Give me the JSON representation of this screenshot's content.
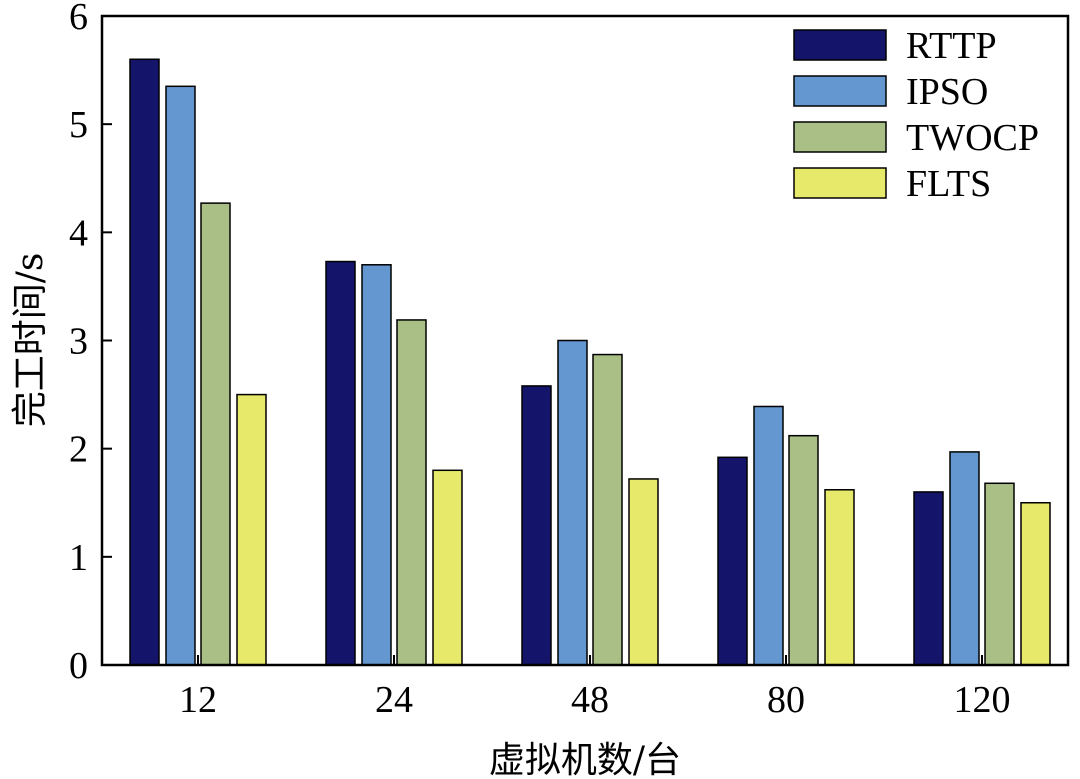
{
  "chart_data": {
    "type": "bar",
    "title": "",
    "xlabel": "虚拟机数/台",
    "ylabel": "完工时间/s",
    "categories": [
      "12",
      "24",
      "48",
      "80",
      "120"
    ],
    "ylim": [
      0,
      6
    ],
    "yticks": [
      "0",
      "1",
      "2",
      "3",
      "4",
      "5",
      "6"
    ],
    "legend_position": "top-right",
    "grid": false,
    "series": [
      {
        "name": "RTTP",
        "color": "#14146b",
        "values": [
          5.6,
          3.73,
          2.58,
          1.92,
          1.6
        ]
      },
      {
        "name": "IPSO",
        "color": "#6497cf",
        "values": [
          5.35,
          3.7,
          3.0,
          2.39,
          1.97
        ]
      },
      {
        "name": "TWOCP",
        "color": "#a9bf86",
        "values": [
          4.27,
          3.19,
          2.87,
          2.12,
          1.68
        ]
      },
      {
        "name": "FLTS",
        "color": "#e6e96a",
        "values": [
          2.5,
          1.8,
          1.72,
          1.62,
          1.5
        ]
      }
    ]
  }
}
